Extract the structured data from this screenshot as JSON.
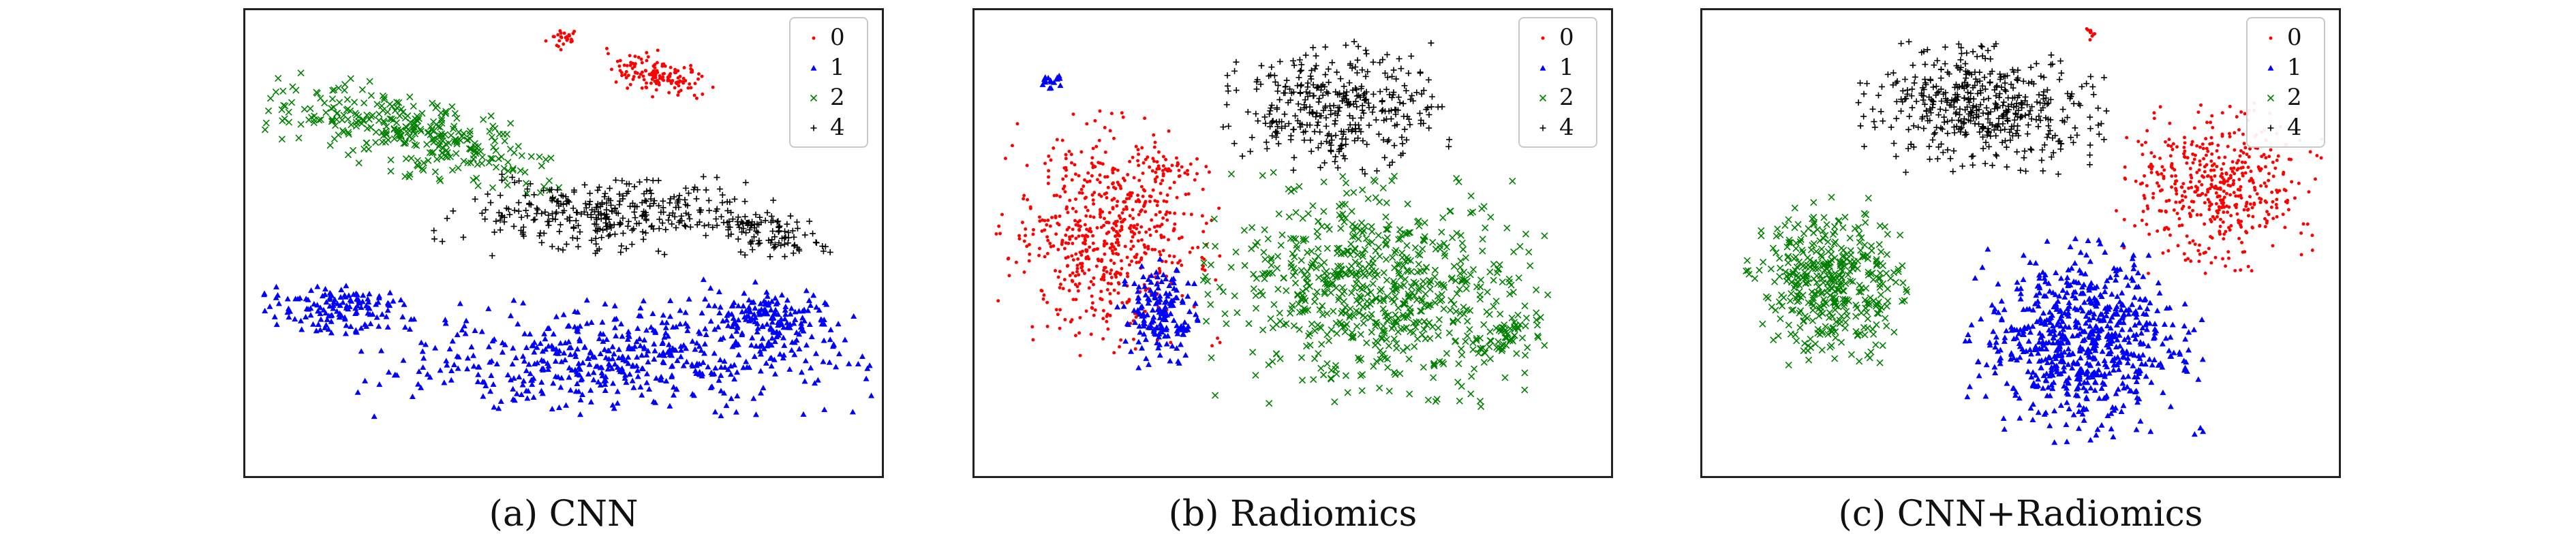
{
  "chart_data": [
    {
      "type": "scatter",
      "caption": "(a) CNN",
      "legend_placement": "top-right",
      "grid": false,
      "xlim": [
        0,
        100
      ],
      "ylim": [
        0,
        100
      ],
      "series": [
        {
          "name": "0",
          "color": "#ff0000",
          "marker": "dot",
          "clusters": [
            {
              "cx": 50,
              "cy": 94,
              "rx": 3,
              "ry": 2.5,
              "angle": 0,
              "n": 25
            },
            {
              "cx": 65,
              "cy": 86,
              "rx": 9,
              "ry": 4.5,
              "angle": -22,
              "n": 140
            }
          ]
        },
        {
          "name": "1",
          "color": "#0000ff",
          "marker": "triangle",
          "clusters": [
            {
              "cx": 15,
              "cy": 36,
              "rx": 11,
              "ry": 5,
              "angle": 0,
              "n": 140
            },
            {
              "cx": 58,
              "cy": 25,
              "rx": 37,
              "ry": 12,
              "angle": 0,
              "n": 520
            },
            {
              "cx": 82,
              "cy": 34,
              "rx": 12,
              "ry": 7,
              "angle": -15,
              "n": 160
            }
          ]
        },
        {
          "name": "2",
          "color": "#008000",
          "marker": "x",
          "clusters": [
            {
              "cx": 27,
              "cy": 73,
              "rx": 23,
              "ry": 8,
              "angle": -22,
              "n": 330
            }
          ]
        },
        {
          "name": "4",
          "color": "#000000",
          "marker": "plus",
          "clusters": [
            {
              "cx": 57,
              "cy": 56,
              "rx": 25,
              "ry": 8,
              "angle": 0,
              "n": 330
            },
            {
              "cx": 82,
              "cy": 52,
              "rx": 12,
              "ry": 5,
              "angle": -18,
              "n": 100
            }
          ]
        }
      ]
    },
    {
      "type": "scatter",
      "caption": "(b) Radiomics",
      "legend_placement": "top-right",
      "grid": false,
      "xlim": [
        0,
        100
      ],
      "ylim": [
        0,
        100
      ],
      "series": [
        {
          "name": "0",
          "color": "#ff0000",
          "marker": "dot",
          "clusters": [
            {
              "cx": 21,
              "cy": 52,
              "rx": 16,
              "ry": 24,
              "angle": 0,
              "n": 620
            },
            {
              "cx": 31,
              "cy": 66,
              "rx": 6,
              "ry": 3,
              "angle": 0,
              "n": 40
            }
          ]
        },
        {
          "name": "1",
          "color": "#0000ff",
          "marker": "triangle",
          "clusters": [
            {
              "cx": 29,
              "cy": 35,
              "rx": 6,
              "ry": 11,
              "angle": 0,
              "n": 170
            },
            {
              "cx": 12,
              "cy": 85,
              "rx": 2,
              "ry": 2,
              "angle": 0,
              "n": 18
            }
          ]
        },
        {
          "name": "2",
          "color": "#008000",
          "marker": "x",
          "clusters": [
            {
              "cx": 63,
              "cy": 40,
              "rx": 25,
              "ry": 23,
              "angle": 0,
              "n": 720
            },
            {
              "cx": 84,
              "cy": 30,
              "rx": 5,
              "ry": 5,
              "angle": 0,
              "n": 50
            }
          ]
        },
        {
          "name": "4",
          "color": "#000000",
          "marker": "plus",
          "clusters": [
            {
              "cx": 57,
              "cy": 79,
              "rx": 17,
              "ry": 13,
              "angle": 0,
              "n": 360
            }
          ]
        }
      ]
    },
    {
      "type": "scatter",
      "caption": "(c) CNN+Radiomics",
      "legend_placement": "top-right",
      "grid": false,
      "xlim": [
        0,
        100
      ],
      "ylim": [
        0,
        100
      ],
      "series": [
        {
          "name": "0",
          "color": "#ff0000",
          "marker": "dot",
          "clusters": [
            {
              "cx": 81,
              "cy": 62,
              "rx": 15,
              "ry": 17,
              "angle": 0,
              "n": 480
            },
            {
              "cx": 61,
              "cy": 95,
              "rx": 1.5,
              "ry": 1.5,
              "angle": 0,
              "n": 10
            }
          ]
        },
        {
          "name": "1",
          "color": "#0000ff",
          "marker": "triangle",
          "clusters": [
            {
              "cx": 60,
              "cy": 29,
              "rx": 17,
              "ry": 20,
              "angle": 0,
              "n": 720
            }
          ]
        },
        {
          "name": "2",
          "color": "#008000",
          "marker": "x",
          "clusters": [
            {
              "cx": 20,
              "cy": 42,
              "rx": 12,
              "ry": 17,
              "angle": 0,
              "n": 420
            }
          ]
        },
        {
          "name": "4",
          "color": "#000000",
          "marker": "plus",
          "clusters": [
            {
              "cx": 44,
              "cy": 79,
              "rx": 18,
              "ry": 13,
              "angle": 0,
              "n": 470
            }
          ]
        }
      ]
    }
  ]
}
